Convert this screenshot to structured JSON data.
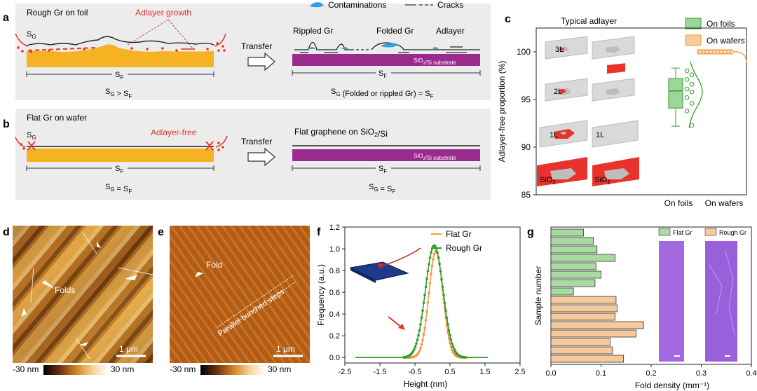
{
  "panel_a": {
    "letter": "a",
    "title": "Rough Gr on foil",
    "sg": "S",
    "sg_sub": "G",
    "adlayer_label": "Adlayer growth",
    "sf": "S",
    "sf_sub": "F",
    "relation": "S_G > S_F",
    "transfer": "Transfer",
    "legend_contam": "Contaminations",
    "legend_cracks": "Cracks",
    "rippled": "Rippled Gr",
    "folded": "Folded Gr",
    "adlayer": "Adlayer",
    "substrate": "SiO2/Si substrate",
    "right_sf": "S_F",
    "right_relation": "S_G (Folded or rippled Gr) = S_F"
  },
  "panel_b": {
    "letter": "b",
    "title": "Flat Gr on wafer",
    "sg": "S_G",
    "adlayer_free": "Adlayer-free",
    "sf": "S_F",
    "relation": "S_G = S_F",
    "transfer": "Transfer",
    "flat_label": "Flat graphene on SiO2/Si",
    "substrate": "SiO2/Si substrate",
    "right_sf": "S_F",
    "right_relation": "S_G = S_F"
  },
  "panel_c": {
    "letter": "c",
    "typical": "Typical adlayer",
    "layers_left": [
      "3L",
      "2L",
      "1L",
      "SiO2"
    ],
    "layers_right": [
      "1L",
      "SiO2"
    ],
    "legend": [
      "On foils",
      "On wafers"
    ],
    "colors": {
      "foils": "#2e9e2e",
      "wafers": "#f39a3c",
      "red": "#e8332c"
    },
    "chart_data": {
      "type": "box",
      "ylabel": "Adlayer-free proportion (%)",
      "ylim": [
        85,
        102.5
      ],
      "yticks": [
        85,
        90,
        95,
        100
      ],
      "categories": [
        "On foils",
        "On wafers"
      ],
      "foils_box": {
        "min": 92.2,
        "q1": 94.1,
        "median": 95.9,
        "q3": 97.2,
        "max": 98.3
      },
      "foils_points": [
        98.0,
        97.6,
        97.1,
        96.6,
        96.1,
        95.8,
        95.2,
        94.6,
        93.8,
        92.3
      ],
      "wafers_value": 100
    }
  },
  "panel_d": {
    "letter": "d",
    "folds": "Folds",
    "scalebar": "1 μm",
    "cmin": "-30 nm",
    "cmax": "30 nm"
  },
  "panel_e": {
    "letter": "e",
    "fold": "Fold",
    "steps": "Parallel bunched steps",
    "scalebar": "1 μm",
    "cmin": "-30 nm",
    "cmax": "30 nm"
  },
  "panel_f": {
    "letter": "f",
    "chart_data": {
      "type": "line",
      "xlabel": "Height (nm)",
      "ylabel": "Frequency (a.u.)",
      "xlim": [
        -2.5,
        2.5
      ],
      "ylim": [
        -0.05,
        1.2
      ],
      "xticks": [
        -2.5,
        -1.5,
        -0.5,
        0.5,
        1.5,
        2.5
      ],
      "yticks": [
        0.0,
        0.2,
        0.4,
        0.6,
        0.8,
        1.0,
        1.2
      ],
      "series": [
        {
          "name": "Flat Gr",
          "color": "#f39a3c",
          "center": 0.1,
          "sigma": 0.2,
          "peak": 0.98
        },
        {
          "name": "Rough Gr",
          "color": "#2e9e2e",
          "center": 0.05,
          "sigma": 0.25,
          "peak": 1.03
        }
      ]
    }
  },
  "panel_g": {
    "letter": "g",
    "legend": [
      "Flat Gr",
      "Rough Gr"
    ],
    "chart_data": {
      "type": "bar",
      "orientation": "horizontal",
      "xlabel": "Fold density (mm⁻¹)",
      "ylabel": "Sample number",
      "xlim": [
        0,
        0.4
      ],
      "xticks": [
        0.0,
        0.1,
        0.2,
        0.3,
        0.4
      ],
      "series": [
        {
          "name": "Flat Gr",
          "color": "#a8dba0",
          "values": [
            0.065,
            0.085,
            0.092,
            0.128,
            0.09,
            0.1,
            0.088,
            0.045
          ]
        },
        {
          "name": "Rough Gr",
          "color": "#f7c99a",
          "values": [
            0.13,
            0.132,
            0.128,
            0.185,
            0.17,
            0.118,
            0.123,
            0.145
          ]
        }
      ]
    }
  }
}
